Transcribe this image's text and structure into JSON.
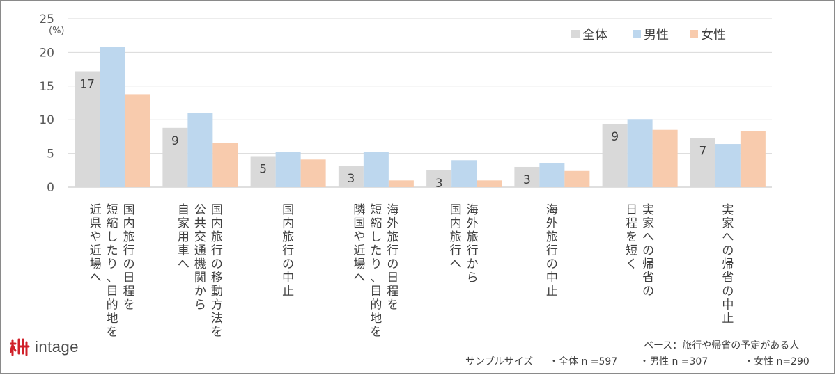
{
  "chart_data": {
    "type": "bar",
    "unit": "(%)",
    "ylim": [
      0,
      25
    ],
    "yticks": [
      0,
      5,
      10,
      15,
      20,
      25
    ],
    "grid": true,
    "legend_position": "top-right",
    "categories": [
      [
        "国内旅行の日程を",
        "短縮したり、目的地を",
        "近県や近場へ"
      ],
      [
        "国内旅行の移動方法を",
        "公共交通機関から",
        "自家用車へ"
      ],
      [
        "国内旅行の中止"
      ],
      [
        "海外旅行の日程を",
        "短縮したり、目的地を",
        "隣国や近場へ"
      ],
      [
        "海外旅行から",
        "国内旅行へ"
      ],
      [
        "海外旅行の中止"
      ],
      [
        "実家への帰省の",
        "日程を短く"
      ],
      [
        "実家への帰省の中止"
      ]
    ],
    "series": [
      {
        "name": "全体",
        "color": "#d9d9d9",
        "values": [
          17.2,
          8.8,
          4.6,
          3.2,
          2.5,
          3.0,
          9.4,
          7.3
        ],
        "labels": [
          "17",
          "9",
          "5",
          "3",
          "3",
          "3",
          "9",
          "7"
        ]
      },
      {
        "name": "男性",
        "color": "#bdd7ee",
        "values": [
          20.8,
          11.0,
          5.2,
          5.2,
          4.0,
          3.6,
          10.1,
          6.4
        ]
      },
      {
        "name": "女性",
        "color": "#f8cbad",
        "values": [
          13.8,
          6.6,
          4.1,
          1.0,
          1.0,
          2.4,
          8.5,
          8.3
        ]
      }
    ]
  },
  "footer": {
    "brand": "intage",
    "base_note": "ベース：旅行や帰省の予定がある人",
    "sample_label": "サンプルサイズ",
    "sample_total": "・全体 n =597",
    "sample_male": "・男性 n =307",
    "sample_female": "・女性 n=290"
  }
}
